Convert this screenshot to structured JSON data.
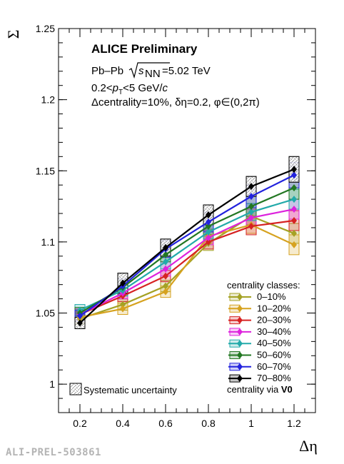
{
  "chart_data": {
    "type": "line",
    "xlabel": "Δη",
    "ylabel": "Σ",
    "xlim": [
      0.1,
      1.3
    ],
    "ylim": [
      0.98,
      1.25
    ],
    "x_ticks": [
      "0.2",
      "0.4",
      "0.6",
      "0.8",
      "1",
      "1.2"
    ],
    "y_ticks": [
      "1",
      "1.05",
      "1.1",
      "1.15",
      "1.2",
      "1.25"
    ],
    "x": [
      0.2,
      0.4,
      0.6,
      0.8,
      1.0,
      1.2
    ],
    "annotations": {
      "title": "ALICE Preliminary",
      "system": "Pb–Pb",
      "energy_sym": "s",
      "energy_sub": "NN",
      "energy_val": "=5.02 TeV",
      "pt_pre": "0.2<",
      "pt_p": "p",
      "pt_sub": "T",
      "pt_post": "<5 GeV/",
      "pt_c": "c",
      "cuts": "Δcentrality=10%, δη=0.2, φ∈(0,2π)"
    },
    "legend_title": "centrality classes:",
    "legend_position": "bottom-right",
    "syst_label": "Systematic uncertainty",
    "centrality_prefix": "centrality via ",
    "centrality_detector": "V0",
    "watermark": "ALI-PREL-503861",
    "series": [
      {
        "name": "0–10%",
        "color": "#a4a224",
        "values": [
          1.046,
          1.056,
          1.069,
          1.099,
          1.118,
          1.106
        ],
        "syst": [
          0.004,
          0.004,
          0.004,
          0.005,
          0.006,
          0.007
        ]
      },
      {
        "name": "10–20%",
        "color": "#d6a21f",
        "values": [
          1.047,
          1.053,
          1.065,
          1.104,
          1.112,
          1.098
        ],
        "syst": [
          0.004,
          0.004,
          0.004,
          0.005,
          0.006,
          0.007
        ]
      },
      {
        "name": "20–30%",
        "color": "#d62222",
        "values": [
          1.049,
          1.062,
          1.076,
          1.1,
          1.111,
          1.115
        ],
        "syst": [
          0.004,
          0.004,
          0.004,
          0.005,
          0.006,
          0.007
        ]
      },
      {
        "name": "30–40%",
        "color": "#dd22dd",
        "values": [
          1.049,
          1.064,
          1.081,
          1.103,
          1.117,
          1.123
        ],
        "syst": [
          0.004,
          0.004,
          0.005,
          0.005,
          0.006,
          0.007
        ]
      },
      {
        "name": "40–50%",
        "color": "#22aaaa",
        "values": [
          1.052,
          1.066,
          1.086,
          1.107,
          1.121,
          1.13
        ],
        "syst": [
          0.004,
          0.004,
          0.005,
          0.005,
          0.006,
          0.007
        ]
      },
      {
        "name": "50–60%",
        "color": "#227722",
        "values": [
          1.05,
          1.068,
          1.091,
          1.111,
          1.125,
          1.138
        ],
        "syst": [
          0.004,
          0.005,
          0.005,
          0.006,
          0.007,
          0.008
        ]
      },
      {
        "name": "60–70%",
        "color": "#2222dd",
        "values": [
          1.048,
          1.069,
          1.095,
          1.114,
          1.132,
          1.147
        ],
        "syst": [
          0.004,
          0.005,
          0.006,
          0.007,
          0.008,
          0.009
        ]
      },
      {
        "name": "70–80%",
        "color": "#000000",
        "values": [
          1.043,
          1.071,
          1.096,
          1.119,
          1.139,
          1.151
        ],
        "syst": [
          0.004,
          0.007,
          0.006,
          0.007,
          0.007,
          0.009
        ]
      }
    ]
  }
}
